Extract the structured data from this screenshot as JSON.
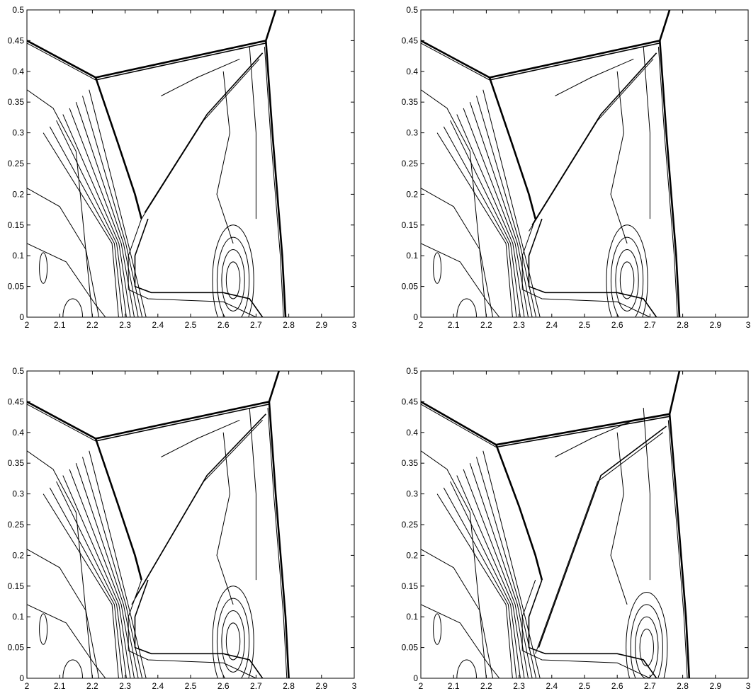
{
  "chart_data": [
    {
      "type": "contour",
      "xlim": [
        2,
        3
      ],
      "ylim": [
        0,
        0.5
      ],
      "xticks": [
        "2",
        "2.1",
        "2.2",
        "2.3",
        "2.4",
        "2.5",
        "2.6",
        "2.7",
        "2.8",
        "2.9",
        "3"
      ],
      "yticks": [
        "0",
        "0.05",
        "0.1",
        "0.15",
        "0.2",
        "0.25",
        "0.3",
        "0.35",
        "0.4",
        "0.45",
        "0.5"
      ],
      "grid": false,
      "features": {
        "triple_point": [
          2.21,
          0.39
        ],
        "mach_stem_top": [
          2.73,
          0.45
        ],
        "mach_stem_bottom": [
          2.79,
          0.0
        ],
        "incident_shock_left": [
          2.0,
          0.45
        ],
        "bow_feature_center": [
          2.63,
          0.06
        ],
        "slip_line_end": [
          2.36,
          0.17
        ]
      }
    },
    {
      "type": "contour",
      "xlim": [
        2,
        3
      ],
      "ylim": [
        0,
        0.5
      ],
      "xticks": [
        "2",
        "2.1",
        "2.2",
        "2.3",
        "2.4",
        "2.5",
        "2.6",
        "2.7",
        "2.8",
        "2.9",
        "3"
      ],
      "yticks": [
        "0",
        "0.05",
        "0.1",
        "0.15",
        "0.2",
        "0.25",
        "0.3",
        "0.35",
        "0.4",
        "0.45",
        "0.5"
      ],
      "grid": false,
      "features": {
        "triple_point": [
          2.21,
          0.39
        ],
        "mach_stem_top": [
          2.73,
          0.45
        ],
        "mach_stem_bottom": [
          2.79,
          0.0
        ],
        "incident_shock_left": [
          2.0,
          0.45
        ],
        "bow_feature_center": [
          2.63,
          0.06
        ],
        "slip_line_end": [
          2.34,
          0.15
        ]
      }
    },
    {
      "type": "contour",
      "xlim": [
        2,
        3
      ],
      "ylim": [
        0,
        0.5
      ],
      "xticks": [
        "2",
        "2.1",
        "2.2",
        "2.3",
        "2.4",
        "2.5",
        "2.6",
        "2.7",
        "2.8",
        "2.9",
        "3"
      ],
      "yticks": [
        "0",
        "0.05",
        "0.1",
        "0.15",
        "0.2",
        "0.25",
        "0.3",
        "0.35",
        "0.4",
        "0.45",
        "0.5"
      ],
      "grid": false,
      "features": {
        "triple_point": [
          2.21,
          0.39
        ],
        "mach_stem_top": [
          2.74,
          0.45
        ],
        "mach_stem_bottom": [
          2.8,
          0.0
        ],
        "incident_shock_left": [
          2.0,
          0.45
        ],
        "bow_feature_center": [
          2.63,
          0.06
        ],
        "slip_line_end": [
          2.33,
          0.13
        ]
      }
    },
    {
      "type": "contour",
      "xlim": [
        2,
        3
      ],
      "ylim": [
        0,
        0.5
      ],
      "xticks": [
        "2",
        "2.1",
        "2.2",
        "2.3",
        "2.4",
        "2.5",
        "2.6",
        "2.7",
        "2.8",
        "2.9",
        "3"
      ],
      "yticks": [
        "0",
        "0.05",
        "0.1",
        "0.15",
        "0.2",
        "0.25",
        "0.3",
        "0.35",
        "0.4",
        "0.45",
        "0.5"
      ],
      "grid": false,
      "features": {
        "triple_point": [
          2.23,
          0.38
        ],
        "mach_stem_top": [
          2.76,
          0.43
        ],
        "mach_stem_bottom": [
          2.82,
          0.0
        ],
        "incident_shock_left": [
          2.0,
          0.45
        ],
        "bow_feature_center": [
          2.69,
          0.05
        ],
        "slip_line_end": [
          2.36,
          0.05
        ]
      }
    }
  ]
}
